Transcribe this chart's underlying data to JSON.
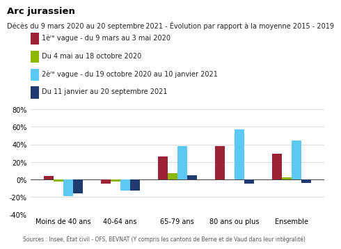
{
  "title": "Arc jurassien",
  "subtitle": "Décès du 9 mars 2020 au 20 septembre 2021 - Évolution par rapport à la moyenne 2015 - 2019",
  "categories": [
    "Moins de 40 ans",
    "40-64 ans",
    "65-79 ans",
    "80 ans ou plus",
    "Ensemble"
  ],
  "series": [
    {
      "label": "1èʳᵉ vague - du 9 mars au 3 mai 2020",
      "color": "#9B2335",
      "values": [
        4,
        -5,
        26,
        38,
        29
      ]
    },
    {
      "label": "Du 4 mai au 18 octobre 2020",
      "color": "#8DB600",
      "values": [
        -2,
        -2,
        7,
        0,
        2
      ]
    },
    {
      "label": "2èʳᵉ vague - du 19 octobre 2020 au 10 janvier 2021",
      "color": "#5BC8F5",
      "values": [
        -19,
        -13,
        38,
        57,
        44
      ]
    },
    {
      "label": "Du 11 janvier au 20 septembre 2021",
      "color": "#1F3A6E",
      "values": [
        -16,
        -13,
        5,
        -5,
        -4
      ]
    }
  ],
  "ylim": [
    -40,
    80
  ],
  "yticks": [
    -40,
    -20,
    0,
    20,
    40,
    60,
    80
  ],
  "ytick_labels": [
    "-40%",
    "-20%",
    "0%",
    "20%",
    "40%",
    "60%",
    "80%"
  ],
  "source": "Sources : Insee, État civil - OFS, BEVNAT (Y compris les cantons de Berne et de Vaud dans leur intégralité)",
  "bar_width": 0.17,
  "background_color": "#FFFFFF",
  "title_fontsize": 9.5,
  "subtitle_fontsize": 7,
  "legend_fontsize": 7,
  "axis_fontsize": 7,
  "source_fontsize": 5.5
}
